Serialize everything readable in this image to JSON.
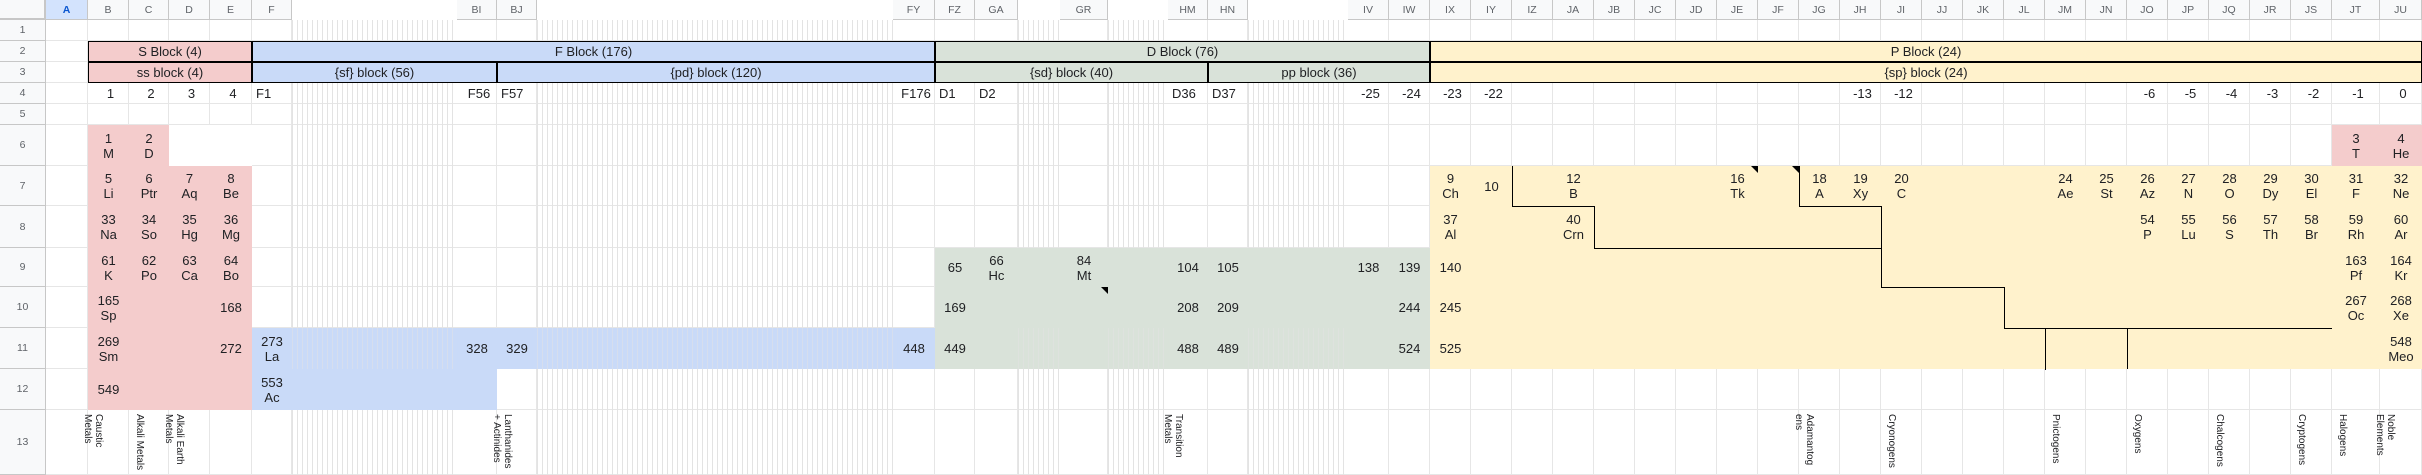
{
  "columns": [
    "A",
    "B",
    "C",
    "D",
    "E",
    "F",
    "BI",
    "BJ",
    "FY",
    "FZ",
    "GA",
    "GR",
    "HM",
    "HN",
    "IV",
    "IW",
    "IX",
    "IY",
    "IZ",
    "JA",
    "JB",
    "JC",
    "JD",
    "JE",
    "JF",
    "JG",
    "JH",
    "JI",
    "JJ",
    "JK",
    "JL",
    "JM",
    "JN",
    "JO",
    "JP",
    "JQ",
    "JR",
    "JS",
    "JT",
    "JU"
  ],
  "selected_column": "A",
  "rows": [
    "1",
    "2",
    "3",
    "4",
    "5",
    "6",
    "7",
    "8",
    "9",
    "10",
    "11",
    "12",
    "13"
  ],
  "colors": {
    "s_block": "#f4cccc",
    "f_block": "#c9daf8",
    "d_block": "#d9e2d9",
    "p_block": "#fff2cc",
    "header_bg": "#f8f9fa",
    "selection": "#d3e3fd"
  },
  "row2": {
    "s": "S Block (4)",
    "f": "F Block (176)",
    "d": "D Block (76)",
    "p": "P Block (24)"
  },
  "row3": {
    "ss": "ss block (4)",
    "sf": "{sf} block (56)",
    "pd": "{pd} block (120)",
    "sd": "{sd} block (40)",
    "pp": "pp block (36)",
    "sp": "{sp} block (24)"
  },
  "row4": {
    "B": "1",
    "C": "2",
    "D": "3",
    "E": "4",
    "F": "F1",
    "BI": "F56",
    "BJ": "F57",
    "FY": "F176",
    "FZ": "D1",
    "GA": "D2",
    "HM": "D36",
    "HN": "D37",
    "IV": "-25",
    "IW": "-24",
    "IX": "-23",
    "IY": "-22",
    "JH": "-13",
    "JI": "-12",
    "JO": "-6",
    "JP": "-5",
    "JQ": "-4",
    "JR": "-3",
    "JS": "-2",
    "JT": "-1",
    "JU": "0"
  },
  "cells": {
    "r6": {
      "B": [
        "1",
        "M"
      ],
      "C": [
        "2",
        "D"
      ],
      "JT": [
        "3",
        "T"
      ],
      "JU": [
        "4",
        "He"
      ]
    },
    "r7": {
      "B": [
        "5",
        "Li"
      ],
      "C": [
        "6",
        "Ptr"
      ],
      "D": [
        "7",
        "Aq"
      ],
      "E": [
        "8",
        "Be"
      ],
      "IX": [
        "9",
        "Ch"
      ],
      "IY": [
        "10"
      ],
      "JA": [
        "12",
        "B"
      ],
      "JE": [
        "16",
        "Tk"
      ],
      "JG": [
        "18",
        "A"
      ],
      "JH": [
        "19",
        "Xy"
      ],
      "JI": [
        "20",
        "C"
      ],
      "JM": [
        "24",
        "Ae"
      ],
      "JN": [
        "25",
        "St"
      ],
      "JO": [
        "26",
        "Az"
      ],
      "JP": [
        "27",
        "N"
      ],
      "JQ": [
        "28",
        "O"
      ],
      "JR": [
        "29",
        "Dy"
      ],
      "JS": [
        "30",
        "El"
      ],
      "JT": [
        "31",
        "F"
      ],
      "JU": [
        "32",
        "Ne"
      ]
    },
    "r8": {
      "B": [
        "33",
        "Na"
      ],
      "C": [
        "34",
        "So"
      ],
      "D": [
        "35",
        "Hg"
      ],
      "E": [
        "36",
        "Mg"
      ],
      "IX": [
        "37",
        "Al"
      ],
      "JA": [
        "40",
        "Crn"
      ],
      "JO": [
        "54",
        "P"
      ],
      "JP": [
        "55",
        "Lu"
      ],
      "JQ": [
        "56",
        "S"
      ],
      "JR": [
        "57",
        "Th"
      ],
      "JS": [
        "58",
        "Br"
      ],
      "JT": [
        "59",
        "Rh"
      ],
      "JU": [
        "60",
        "Ar"
      ]
    },
    "r9": {
      "B": [
        "61",
        "K"
      ],
      "C": [
        "62",
        "Po"
      ],
      "D": [
        "63",
        "Ca"
      ],
      "E": [
        "64",
        "Bo"
      ],
      "FZ": [
        "65"
      ],
      "GA": [
        "66",
        "Hc"
      ],
      "GR": [
        "84",
        "Mt"
      ],
      "HM": [
        "104"
      ],
      "HN": [
        "105"
      ],
      "IV": [
        "138"
      ],
      "IW": [
        "139"
      ],
      "IX": [
        "140"
      ],
      "JT": [
        "163",
        "Pf"
      ],
      "JU": [
        "164",
        "Kr"
      ]
    },
    "r10": {
      "B": [
        "165",
        "Sp"
      ],
      "E": [
        "168"
      ],
      "FZ": [
        "169"
      ],
      "HM": [
        "208"
      ],
      "HN": [
        "209"
      ],
      "IW": [
        "244"
      ],
      "IX": [
        "245"
      ],
      "JT": [
        "267",
        "Oc"
      ],
      "JU": [
        "268",
        "Xe"
      ]
    },
    "r11": {
      "B": [
        "269",
        "Sm"
      ],
      "E": [
        "272"
      ],
      "F": [
        "273",
        "La"
      ],
      "BI": [
        "328"
      ],
      "BJ": [
        "329"
      ],
      "FY": [
        "448"
      ],
      "FZ": [
        "449"
      ],
      "HM": [
        "488"
      ],
      "HN": [
        "489"
      ],
      "IW": [
        "524"
      ],
      "IX": [
        "525"
      ],
      "JU": [
        "548",
        "Meo"
      ]
    },
    "r12": {
      "B": [
        "549"
      ],
      "F": [
        "553",
        "Ac"
      ]
    }
  },
  "labels": {
    "B": "Caustic\nMetals",
    "C": "Alkali Metals",
    "D": "Alkali Earth\nMetals",
    "BJ": "Lanthanides\n+ Actinides",
    "HM": "Transition\nMetals",
    "JG": "Adamantog\nens",
    "JI": "Cryonogens",
    "JM": "Pnictogens",
    "JO": "Oxygens",
    "JQ": "Chalcogens",
    "JS": "Cryptogens",
    "JT": "Halogens",
    "JU": "Noble\nElements"
  }
}
